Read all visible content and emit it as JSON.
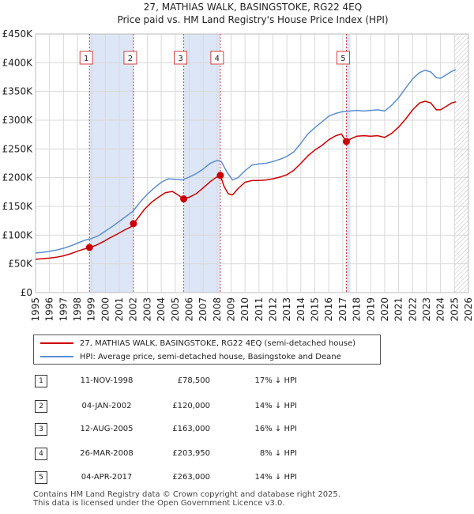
{
  "chart_data": {
    "type": "line",
    "title": "27, MATHIAS WALK, BASINGSTOKE, RG22 4EQ",
    "subtitle": "Price paid vs. HM Land Registry's House Price Index (HPI)",
    "xlabel": "",
    "ylabel": "",
    "xlim": [
      1995,
      2026
    ],
    "ylim": [
      0,
      450000
    ],
    "x_ticks": [
      "1995",
      "1996",
      "1997",
      "1998",
      "1999",
      "2000",
      "2001",
      "2002",
      "2003",
      "2004",
      "2005",
      "2006",
      "2007",
      "2008",
      "2009",
      "2010",
      "2011",
      "2012",
      "2013",
      "2014",
      "2015",
      "2016",
      "2017",
      "2018",
      "2019",
      "2020",
      "2021",
      "2022",
      "2023",
      "2024",
      "2025",
      "2026"
    ],
    "y_ticks": [
      {
        "value": 0,
        "label": "£0"
      },
      {
        "value": 50000,
        "label": "£50K"
      },
      {
        "value": 100000,
        "label": "£100K"
      },
      {
        "value": 150000,
        "label": "£150K"
      },
      {
        "value": 200000,
        "label": "£200K"
      },
      {
        "value": 250000,
        "label": "£250K"
      },
      {
        "value": 300000,
        "label": "£300K"
      },
      {
        "value": 350000,
        "label": "£350K"
      },
      {
        "value": 400000,
        "label": "£400K"
      },
      {
        "value": 450000,
        "label": "£450K"
      }
    ],
    "grid": true,
    "legend_position": "below",
    "forecast_from": 2025.0,
    "series": [
      {
        "name": "27, MATHIAS WALK, BASINGSTOKE, RG22 4EQ (semi-detached house)",
        "color": "#cc0000",
        "x": [
          1995.0,
          1995.5,
          1996.0,
          1996.5,
          1997.0,
          1997.5,
          1998.0,
          1998.5,
          1998.86,
          1999.3,
          1999.8,
          2000.3,
          2000.8,
          2001.3,
          2001.8,
          2002.01,
          2002.4,
          2002.8,
          2003.3,
          2003.8,
          2004.3,
          2004.8,
          2005.2,
          2005.61,
          2006.0,
          2006.5,
          2007.0,
          2007.5,
          2007.9,
          2008.23,
          2008.5,
          2008.8,
          2009.1,
          2009.5,
          2010.0,
          2010.5,
          2011.0,
          2011.5,
          2012.0,
          2012.5,
          2013.0,
          2013.5,
          2014.0,
          2014.5,
          2015.0,
          2015.5,
          2016.0,
          2016.5,
          2016.9,
          2017.26,
          2017.6,
          2018.0,
          2018.5,
          2019.0,
          2019.5,
          2020.0,
          2020.5,
          2021.0,
          2021.5,
          2022.0,
          2022.5,
          2022.9,
          2023.3,
          2023.7,
          2024.0,
          2024.4,
          2024.8,
          2025.1
        ],
        "values": [
          58000,
          59000,
          60000,
          61500,
          64000,
          67500,
          72000,
          76000,
          78500,
          82000,
          88000,
          95000,
          101000,
          108000,
          114000,
          120000,
          132000,
          145000,
          157000,
          166000,
          174000,
          176000,
          170000,
          163000,
          166000,
          172000,
          182000,
          193000,
          200000,
          203950,
          185000,
          172000,
          170000,
          181000,
          192000,
          195000,
          195000,
          196000,
          198000,
          201000,
          205000,
          213000,
          225000,
          238000,
          248000,
          256000,
          266000,
          273000,
          276000,
          263000,
          268000,
          272000,
          273000,
          272000,
          273000,
          270000,
          277000,
          288000,
          302000,
          318000,
          330000,
          333000,
          330000,
          318000,
          318000,
          324000,
          330000,
          332000
        ]
      },
      {
        "name": "HPI: Average price, semi-detached house, Basingstoke and Deane",
        "color": "#5b8fd0",
        "x": [
          1995.0,
          1995.5,
          1996.0,
          1996.5,
          1997.0,
          1997.5,
          1998.0,
          1998.5,
          1999.0,
          1999.5,
          2000.0,
          2000.5,
          2001.0,
          2001.5,
          2002.0,
          2002.5,
          2003.0,
          2003.5,
          2004.0,
          2004.5,
          2005.0,
          2005.5,
          2006.0,
          2006.5,
          2007.0,
          2007.5,
          2008.0,
          2008.3,
          2008.7,
          2009.1,
          2009.5,
          2010.0,
          2010.5,
          2011.0,
          2011.5,
          2012.0,
          2012.5,
          2013.0,
          2013.5,
          2014.0,
          2014.5,
          2015.0,
          2015.5,
          2016.0,
          2016.5,
          2017.0,
          2017.5,
          2018.0,
          2018.5,
          2019.0,
          2019.5,
          2020.0,
          2020.5,
          2021.0,
          2021.5,
          2022.0,
          2022.5,
          2022.9,
          2023.3,
          2023.7,
          2024.0,
          2024.4,
          2024.8,
          2025.1
        ],
        "values": [
          69000,
          70000,
          72000,
          74000,
          77000,
          81000,
          86000,
          91000,
          94000,
          99000,
          107000,
          115000,
          124000,
          133000,
          142000,
          158000,
          171000,
          182000,
          192000,
          198000,
          197000,
          196000,
          201000,
          207000,
          215000,
          225000,
          230000,
          228000,
          210000,
          196000,
          200000,
          212000,
          222000,
          224000,
          225000,
          228000,
          232000,
          237000,
          245000,
          260000,
          276000,
          287000,
          297000,
          307000,
          312000,
          315000,
          316000,
          317000,
          316000,
          317000,
          318000,
          316000,
          326000,
          339000,
          356000,
          372000,
          383000,
          387000,
          384000,
          374000,
          373000,
          379000,
          385000,
          388000
        ]
      }
    ],
    "sales": [
      {
        "n": "1",
        "year": 1998.86,
        "price": 78500
      },
      {
        "n": "2",
        "year": 2002.01,
        "price": 120000
      },
      {
        "n": "3",
        "year": 2005.61,
        "price": 163000
      },
      {
        "n": "4",
        "year": 2008.23,
        "price": 203950
      },
      {
        "n": "5",
        "year": 2017.26,
        "price": 263000
      }
    ]
  },
  "legend": {
    "property_label": "27, MATHIAS WALK, BASINGSTOKE, RG22 4EQ (semi-detached house)",
    "hpi_label": "HPI: Average price, semi-detached house, Basingstoke and Deane"
  },
  "sales_table": [
    {
      "n": "1",
      "date": "11-NOV-1998",
      "price": "£78,500",
      "hpi": "17% ↓ HPI"
    },
    {
      "n": "2",
      "date": "04-JAN-2002",
      "price": "£120,000",
      "hpi": "14% ↓ HPI"
    },
    {
      "n": "3",
      "date": "12-AUG-2005",
      "price": "£163,000",
      "hpi": "16% ↓ HPI"
    },
    {
      "n": "4",
      "date": "26-MAR-2008",
      "price": "£203,950",
      "hpi": "8% ↓ HPI"
    },
    {
      "n": "5",
      "date": "04-APR-2017",
      "price": "£263,000",
      "hpi": "14% ↓ HPI"
    }
  ],
  "footer": {
    "line1": "Contains HM Land Registry data © Crown copyright and database right 2025.",
    "line2": "This data is licensed under the Open Government Licence v3.0."
  },
  "colors": {
    "property": "#cc0000",
    "hpi": "#5b8fd0",
    "sale_shade": "#dde6f6",
    "grid": "#d8d8d8",
    "forecast_hatch": "#c8c8c8"
  }
}
